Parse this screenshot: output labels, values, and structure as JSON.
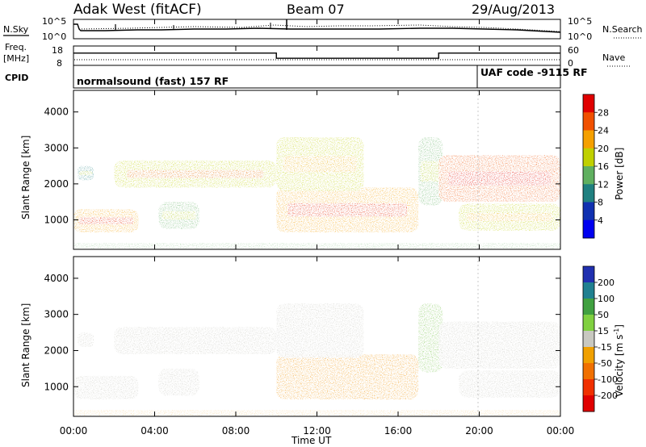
{
  "header": {
    "station": "Adak West (fitACF)",
    "beam": "Beam 07",
    "date": "29/Aug/2013"
  },
  "noise_panel": {
    "left_label": "N.Sky",
    "right_label": "N.Search",
    "tick_top": "10^5",
    "tick_bottom": "10^0"
  },
  "freq_panel": {
    "left_label_top": "Freq.",
    "left_label_bottom": "[MHz]",
    "right_label": "Nave",
    "left_ticks": [
      "18",
      "8"
    ],
    "right_ticks": [
      "60",
      "0"
    ]
  },
  "cpid_panel": {
    "label": "CPID",
    "segments": [
      {
        "text": "normalsound (fast) 157 RF"
      },
      {
        "text": "UAF code -9115 RF"
      }
    ]
  },
  "power_panel": {
    "ylabel": "Slant Range [km]",
    "colorbar_label": "Power [dB]",
    "colorbar_ticks": [
      "28",
      "24",
      "20",
      "16",
      "12",
      "8",
      "4"
    ],
    "colorbar_colors": [
      "#e00000",
      "#f05000",
      "#f5a000",
      "#c0d000",
      "#60b060",
      "#208080",
      "#1030b0",
      "#0000f0"
    ]
  },
  "velocity_panel": {
    "ylabel": "Slant Range [km]",
    "colorbar_label": "Velocity [m s",
    "colorbar_label_sup": "-1",
    "colorbar_label_end": "]",
    "colorbar_ticks": [
      "200",
      "100",
      "50",
      "15",
      "-15",
      "-50",
      "-100",
      "-200"
    ],
    "colorbar_colors": [
      "#2030b0",
      "#208090",
      "#40a040",
      "#80d040",
      "#c8c8c0",
      "#f0a000",
      "#f07000",
      "#f03000",
      "#e00000"
    ]
  },
  "xaxis": {
    "label": "Time UT"
  },
  "chart_data": {
    "type": "heatmap",
    "x": [
      "00:00",
      "04:00",
      "08:00",
      "12:00",
      "16:00",
      "20:00",
      "00:00"
    ],
    "y_ticks": [
      "1000",
      "2000",
      "3000",
      "4000"
    ],
    "xlim_hours": [
      0,
      24
    ],
    "ylim": [
      180,
      4600
    ],
    "frequency_mhz": [
      {
        "from_hour": 0,
        "to_hour": 10,
        "value": 15
      },
      {
        "from_hour": 10,
        "to_hour": 18,
        "value": 11
      },
      {
        "from_hour": 18,
        "to_hour": 24,
        "value": 15
      }
    ],
    "echo_regions": [
      {
        "t0": 0.0,
        "t1": 3.2,
        "r0": 650,
        "r1": 1300,
        "power": 22,
        "velocity": 0
      },
      {
        "t0": 0.2,
        "t1": 1.0,
        "r0": 2100,
        "r1": 2500,
        "power": 10,
        "velocity": 0
      },
      {
        "t0": 2.0,
        "t1": 10.0,
        "r0": 1900,
        "r1": 2650,
        "power": 18,
        "velocity": 0
      },
      {
        "t0": 4.2,
        "t1": 6.2,
        "r0": 750,
        "r1": 1500,
        "power": 12,
        "velocity": 0
      },
      {
        "t0": 10.0,
        "t1": 17.0,
        "r0": 650,
        "r1": 1900,
        "power": 22,
        "velocity": -60
      },
      {
        "t0": 10.0,
        "t1": 14.3,
        "r0": 1800,
        "r1": 3300,
        "power": 16,
        "velocity": 0
      },
      {
        "t0": 17.0,
        "t1": 18.2,
        "r0": 1400,
        "r1": 3300,
        "power": 12,
        "velocity": 20
      },
      {
        "t0": 18.0,
        "t1": 24.0,
        "r0": 1500,
        "r1": 2800,
        "power": 24,
        "velocity": 0
      },
      {
        "t0": 19.0,
        "t1": 24.0,
        "r0": 700,
        "r1": 1450,
        "power": 16,
        "velocity": 0
      }
    ]
  }
}
